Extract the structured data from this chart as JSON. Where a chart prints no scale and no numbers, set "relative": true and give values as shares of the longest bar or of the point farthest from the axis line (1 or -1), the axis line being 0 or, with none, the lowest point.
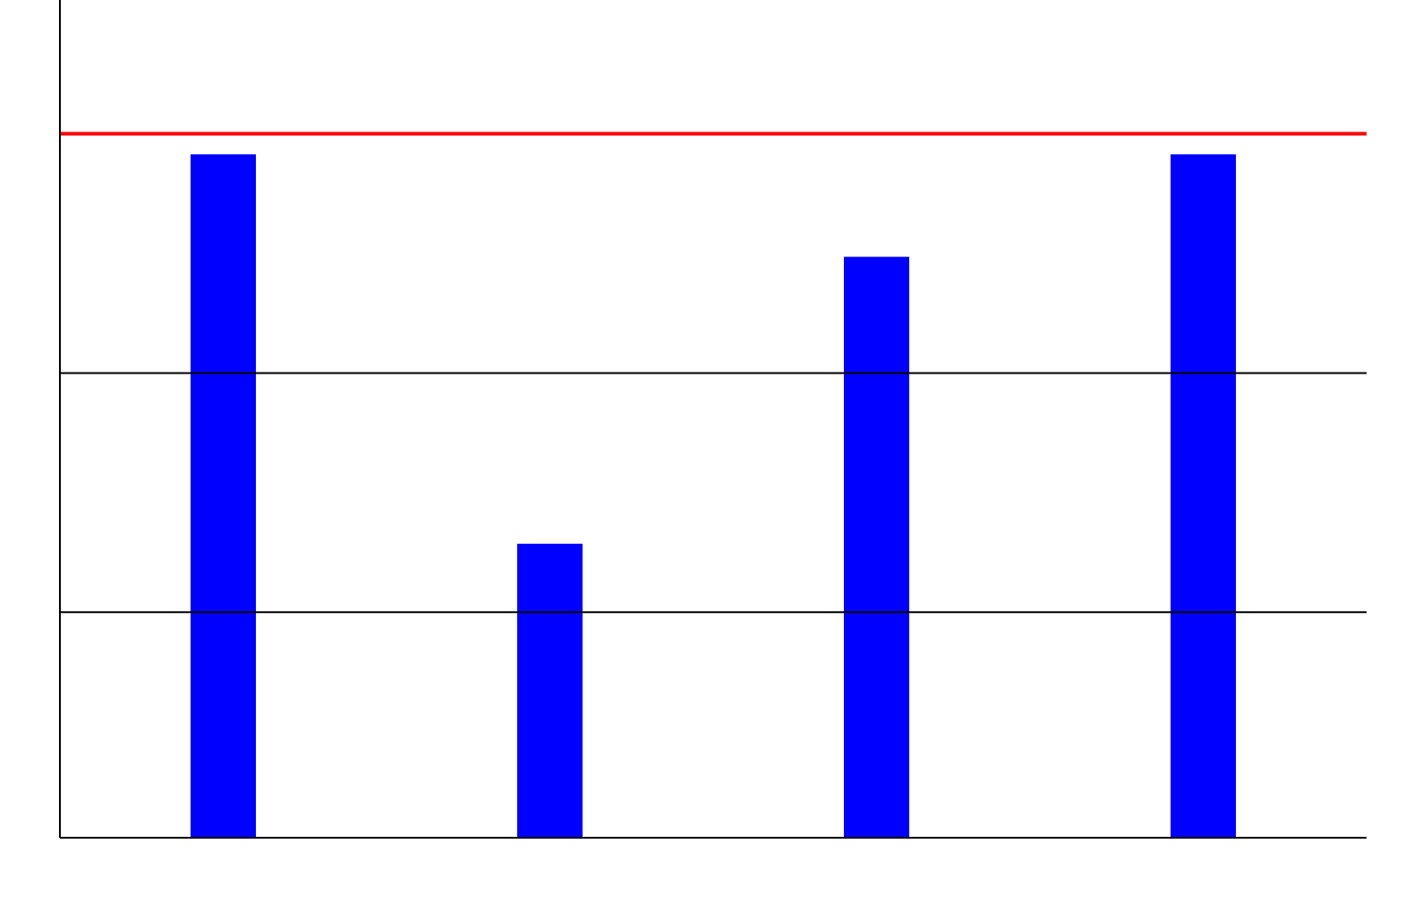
{
  "chart_data": {
    "type": "bar",
    "relative": true,
    "categories": [
      null,
      null,
      null,
      null
    ],
    "values": [
      1,
      0.43,
      0.85,
      1
    ],
    "color": "#0000ff",
    "ref_lines": [
      {
        "axis": "y",
        "value": 1.03,
        "color": "#ff0000"
      },
      {
        "axis": "y",
        "value": 0.68,
        "color": "#000000"
      },
      {
        "axis": "y",
        "value": 0.33,
        "color": "#000000"
      }
    ]
  }
}
